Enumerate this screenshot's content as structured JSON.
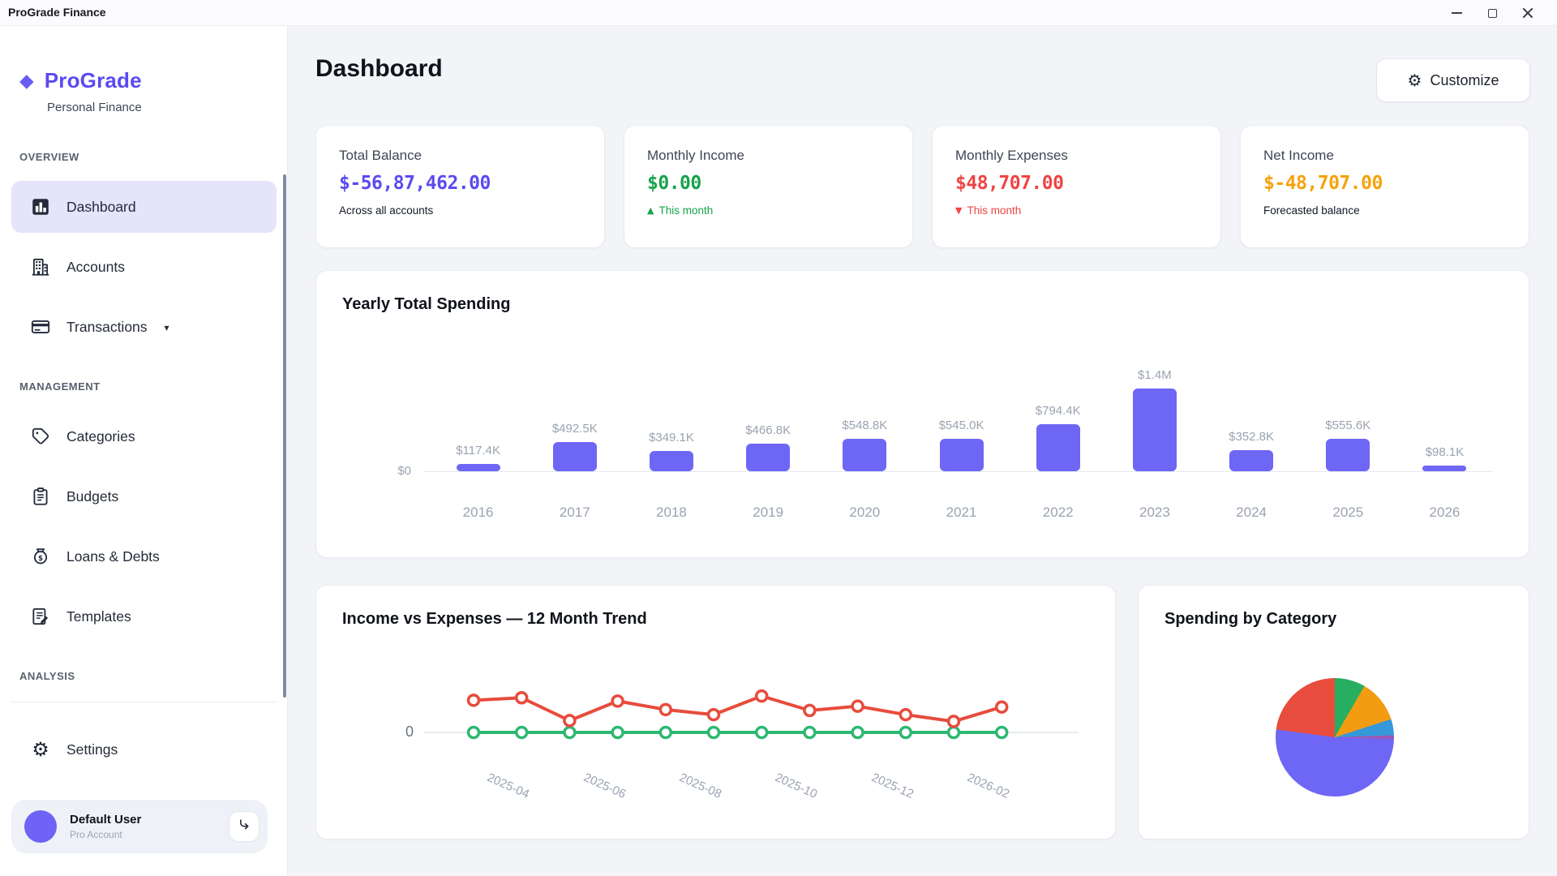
{
  "window": {
    "title": "ProGrade Finance",
    "controls": [
      {
        "name": "minimize"
      },
      {
        "name": "maximize"
      },
      {
        "name": "close"
      }
    ]
  },
  "sidebar": {
    "brand": {
      "name": "ProGrade",
      "subtitle": "Personal Finance",
      "logo_icon": "diamond-icon",
      "logo_glyph": "◆",
      "accent_color": "#5b4af0"
    },
    "sections": [
      {
        "label": "OVERVIEW",
        "items": [
          {
            "label": "Dashboard",
            "icon": "chart-column-icon",
            "active": true
          },
          {
            "label": "Accounts",
            "icon": "building-icon"
          },
          {
            "label": "Transactions",
            "icon": "credit-card-icon",
            "caret": "▾"
          }
        ]
      },
      {
        "label": "MANAGEMENT",
        "items": [
          {
            "label": "Categories",
            "icon": "tag-icon"
          },
          {
            "label": "Budgets",
            "icon": "clipboard-icon"
          },
          {
            "label": "Loans & Debts",
            "icon": "money-bag-icon"
          },
          {
            "label": "Templates",
            "icon": "document-edit-icon"
          }
        ]
      },
      {
        "label": "ANALYSIS",
        "items": []
      }
    ],
    "settings": {
      "label": "Settings",
      "icon": "gear-icon",
      "glyph": "⚙"
    },
    "user": {
      "name": "Default User",
      "plan": "Pro Account",
      "action_icon": "switch-account-icon",
      "avatar_color": "#6e63f6"
    }
  },
  "header": {
    "title": "Dashboard",
    "customize_label": "Customize",
    "customize_icon": "gear-icon",
    "customize_glyph": "⚙"
  },
  "stat_cards": [
    {
      "label": "Total Balance",
      "value": "$-56,87,462.00",
      "sub": "Across all accounts",
      "value_color": "#5b4af0",
      "sub_color": "#111827"
    },
    {
      "label": "Monthly Income",
      "value": "$0.00",
      "sub": "This month",
      "sub_icon": "▲",
      "value_color": "#16a34a",
      "sub_color": "#16a34a"
    },
    {
      "label": "Monthly Expenses",
      "value": "$48,707.00",
      "sub": "This month",
      "sub_icon": "▼",
      "value_color": "#ef4444",
      "sub_color": "#ef4444"
    },
    {
      "label": "Net Income",
      "value": "$-48,707.00",
      "sub": "Forecasted balance",
      "value_color": "#f5a20b",
      "sub_color": "#111827"
    }
  ],
  "chart_data": [
    {
      "type": "bar",
      "title": "Yearly Total Spending",
      "categories": [
        "2016",
        "2017",
        "2018",
        "2019",
        "2020",
        "2021",
        "2022",
        "2023",
        "2024",
        "2025",
        "2026"
      ],
      "values": [
        117400,
        492500,
        349100,
        466800,
        548800,
        545000,
        794400,
        1400000,
        352800,
        555600,
        98100
      ],
      "labels": [
        "$117.4K",
        "$492.5K",
        "$349.1K",
        "$466.8K",
        "$548.8K",
        "$545.0K",
        "$794.4K",
        "$1.4M",
        "$352.8K",
        "$555.6K",
        "$98.1K"
      ],
      "xlabel": "",
      "ylabel": "",
      "y_zero_label": "$0",
      "ylim": [
        0,
        1400000
      ],
      "grid": false,
      "legend": "none",
      "bar_color": "#6e66f5"
    },
    {
      "type": "line",
      "title": "Income vs Expenses — 12 Month Trend",
      "x": [
        "2025-03",
        "2025-04",
        "2025-05",
        "2025-06",
        "2025-07",
        "2025-08",
        "2025-09",
        "2025-10",
        "2025-11",
        "2025-12",
        "2026-01",
        "2026-02"
      ],
      "tick_labels": [
        "2025-04",
        "2025-06",
        "2025-08",
        "2025-10",
        "2025-12",
        "2026-02"
      ],
      "series": [
        {
          "name": "Expenses",
          "color": "#e74c3c",
          "values": [
            61700,
            66500,
            22700,
            60100,
            43800,
            34100,
            69800,
            42200,
            50300,
            34100,
            21100,
            48707
          ]
        },
        {
          "name": "Income",
          "color": "#2eb872",
          "values": [
            0,
            0,
            0,
            0,
            0,
            0,
            0,
            0,
            0,
            0,
            0,
            0
          ]
        }
      ],
      "y_zero_label": "0",
      "ylim": [
        0,
        70000
      ],
      "grid": false,
      "legend": "none",
      "note": "expense values estimated from pixel heights; only the 0 tick is labeled"
    },
    {
      "type": "pie",
      "title": "Spending by Category",
      "segments": [
        {
          "color": "#27ae60",
          "percent": 12.5
        },
        {
          "color": "#f39c12",
          "percent": 11.7
        },
        {
          "color": "#3498db",
          "percent": 4.4
        },
        {
          "color": "#9b59b6",
          "percent": 1.1
        },
        {
          "color": "#6e66f5",
          "percent": 51.6
        },
        {
          "color": "#e74c3c",
          "percent": 18.7
        }
      ],
      "start_angle_deg": -15,
      "legend": "none",
      "note": "slice percentages estimated from arc angles; no slice labels visible"
    }
  ]
}
